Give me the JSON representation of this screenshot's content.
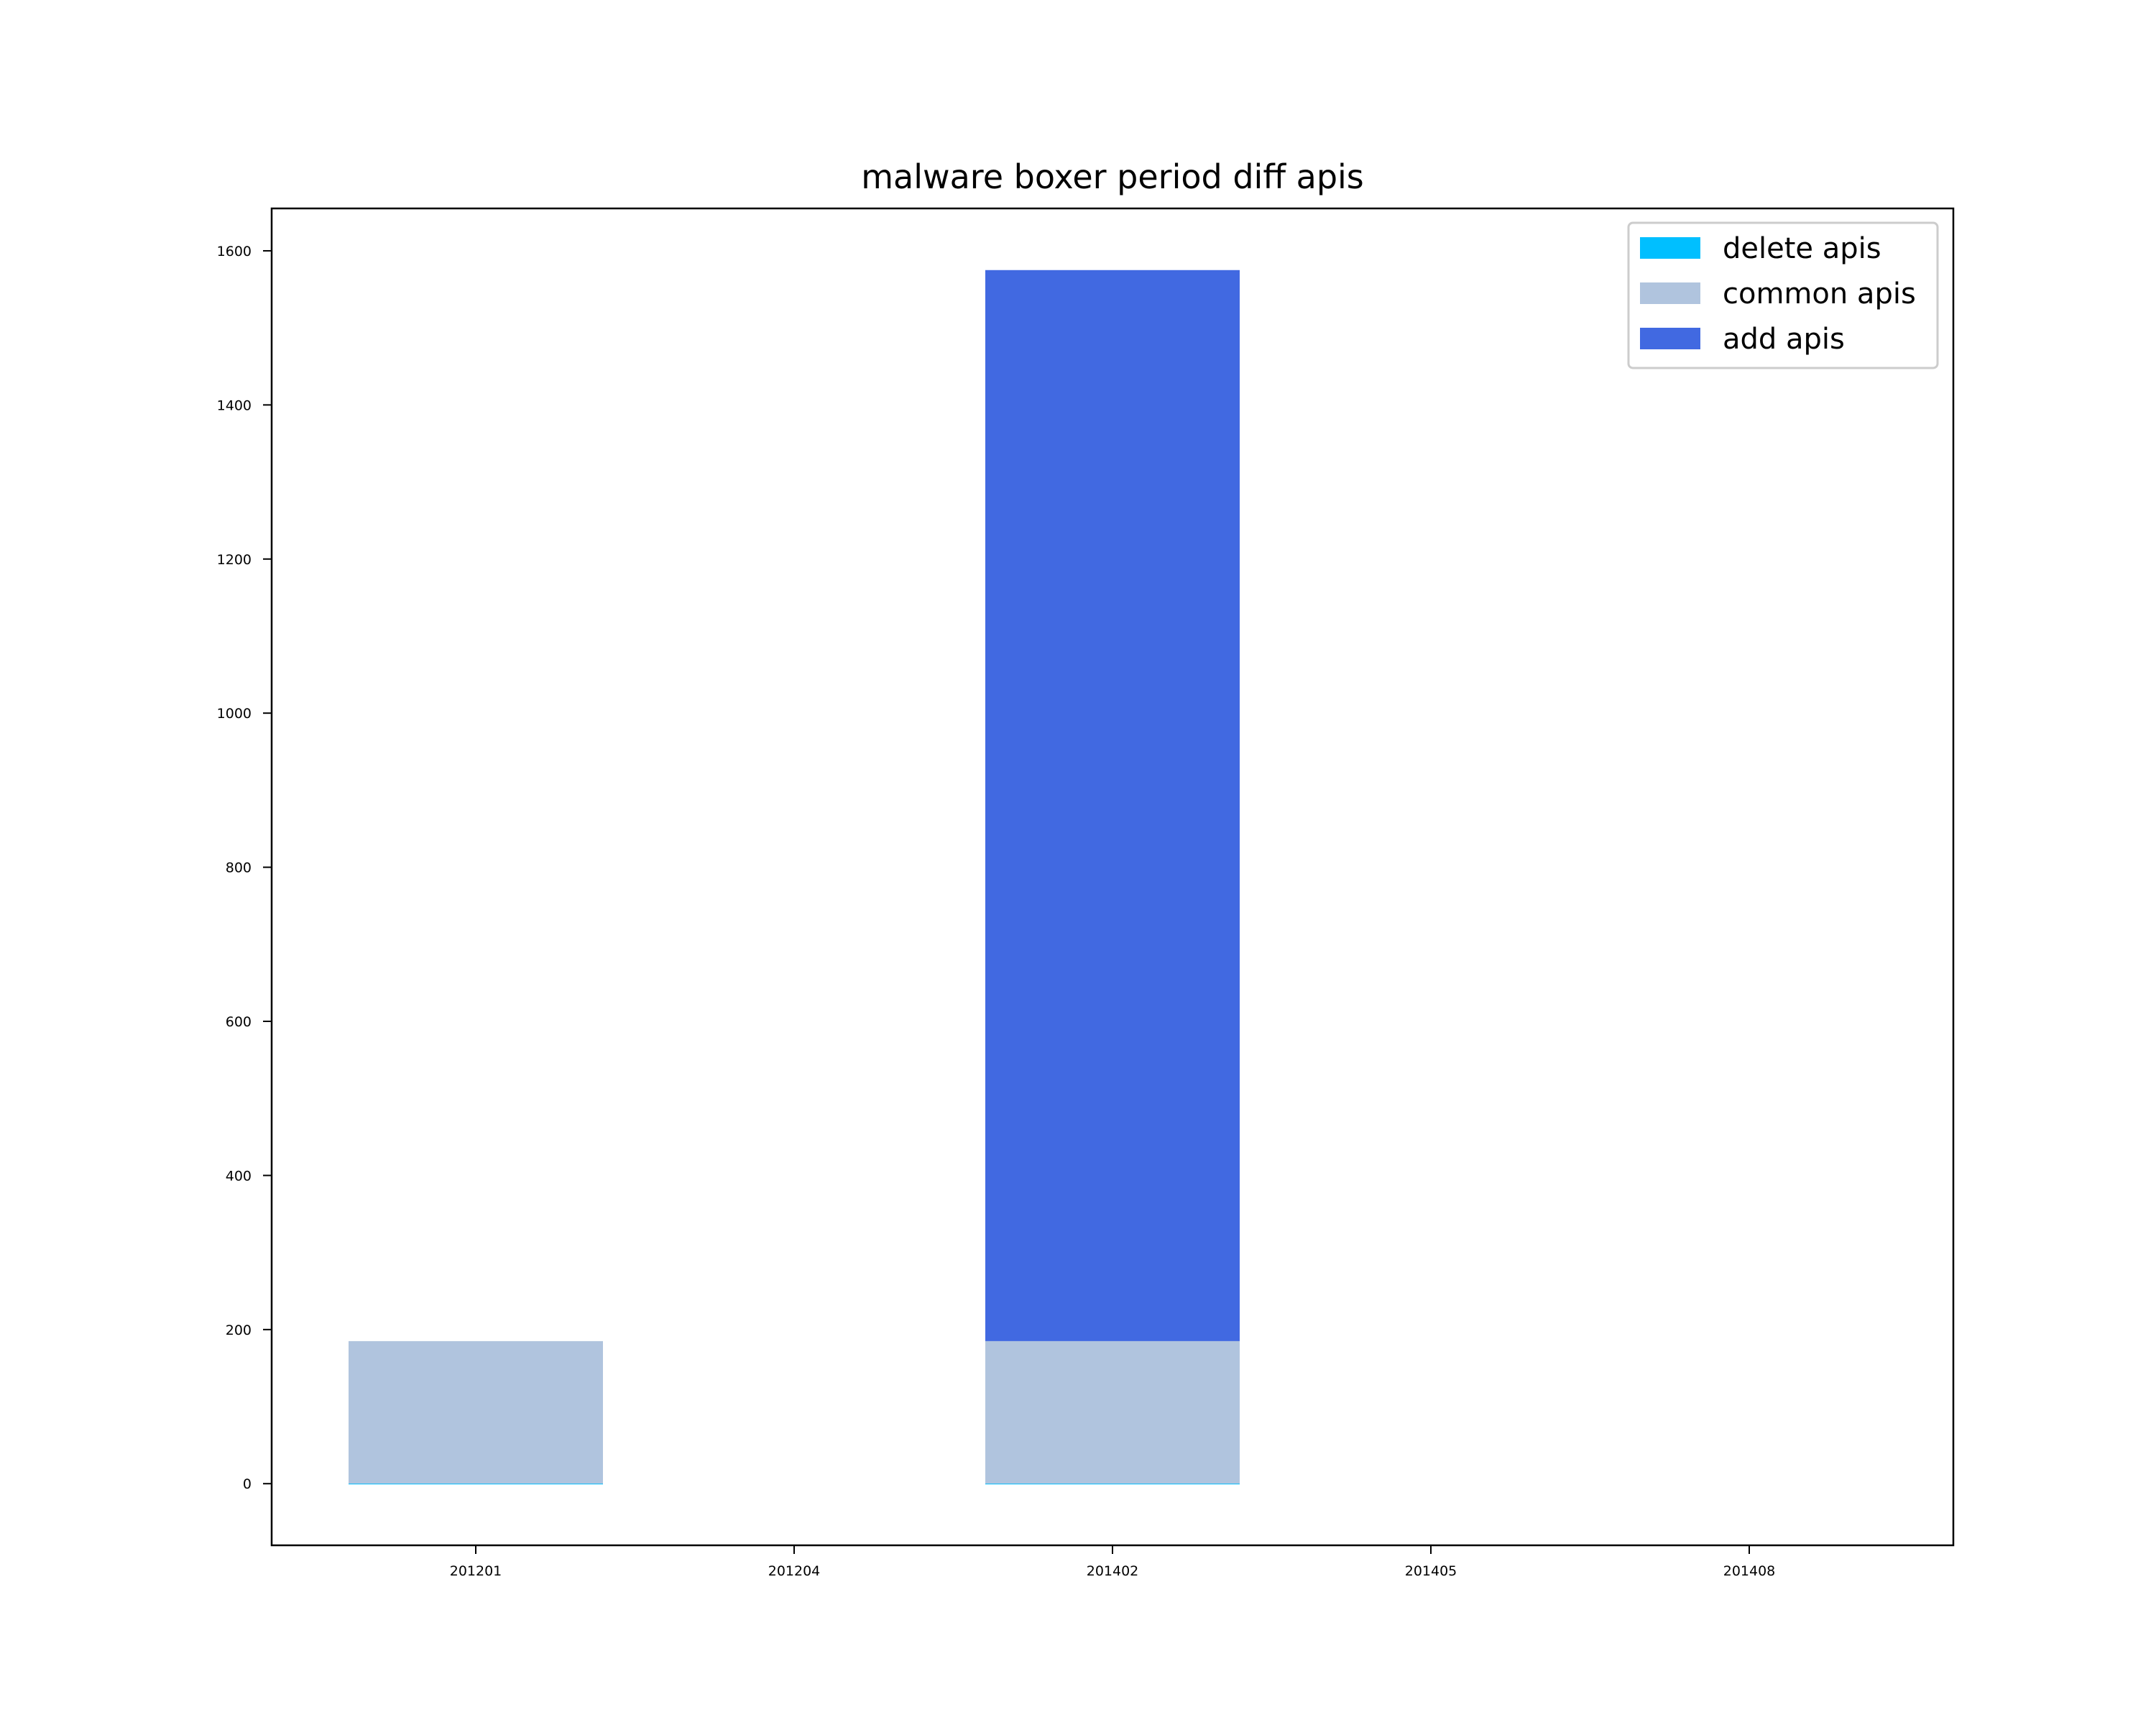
{
  "chart_data": {
    "type": "bar",
    "stacked": true,
    "title": "malware boxer period diff apis",
    "xlabel": "",
    "ylabel": "",
    "categories": [
      "201201",
      "201204",
      "201402",
      "201405",
      "201408"
    ],
    "series": [
      {
        "name": "delete apis",
        "color": "#00bfff",
        "values": [
          0,
          0,
          0,
          0,
          0
        ]
      },
      {
        "name": "common apis",
        "color": "#b0c4de",
        "values": [
          185,
          0,
          185,
          0,
          0
        ]
      },
      {
        "name": "add apis",
        "color": "#4169e1",
        "values": [
          0,
          0,
          1390,
          0,
          0
        ]
      }
    ],
    "ylim": [
      -80,
      1655
    ],
    "yticks": [
      0,
      200,
      400,
      600,
      800,
      1000,
      1200,
      1400,
      1600
    ],
    "grid": false,
    "legend_position": "top-right"
  }
}
